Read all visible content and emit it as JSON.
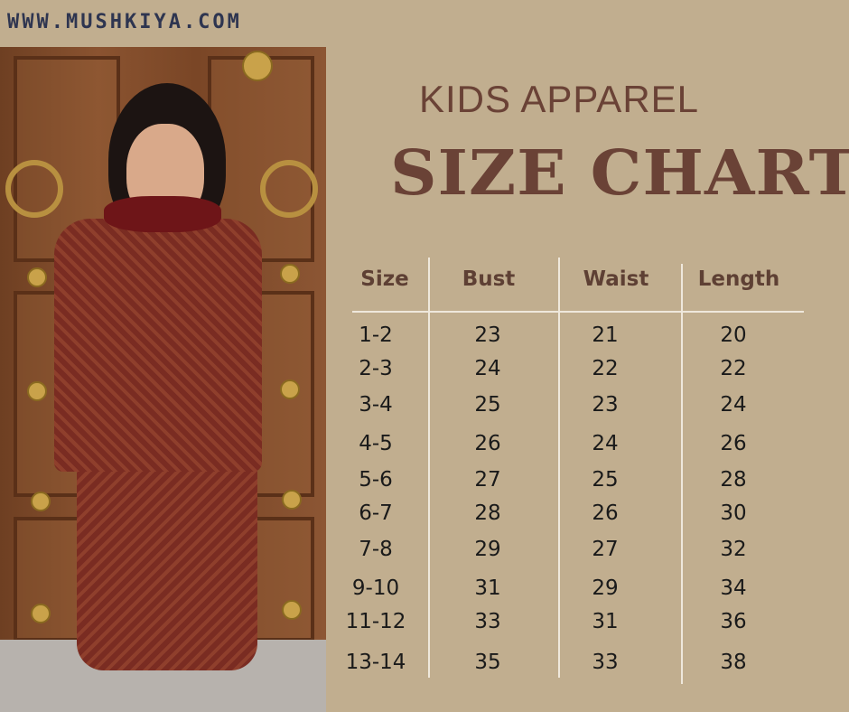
{
  "website": "WWW.MUSHKIYA.COM",
  "title_line1": "KIDS APPAREL",
  "title_line2": "SIZE CHART",
  "table": {
    "headers": [
      "Size",
      "Bust",
      "Waist",
      "Length"
    ],
    "rows": [
      [
        "1-2",
        "23",
        "21",
        "20"
      ],
      [
        "2-3",
        "24",
        "22",
        "22"
      ],
      [
        "3-4",
        "25",
        "23",
        "24"
      ],
      [
        "4-5",
        "26",
        "24",
        "26"
      ],
      [
        "5-6",
        "27",
        "25",
        "28"
      ],
      [
        "6-7",
        "28",
        "26",
        "30"
      ],
      [
        "7-8",
        "29",
        "27",
        "32"
      ],
      [
        "9-10",
        "31",
        "29",
        "34"
      ],
      [
        "11-12",
        "33",
        "31",
        "36"
      ],
      [
        "13-14",
        "35",
        "33",
        "38"
      ]
    ]
  },
  "colors": {
    "background": "#c1ae8f",
    "title": "#6a4236",
    "header": "#5e4034",
    "lines": "#efe8dc"
  }
}
